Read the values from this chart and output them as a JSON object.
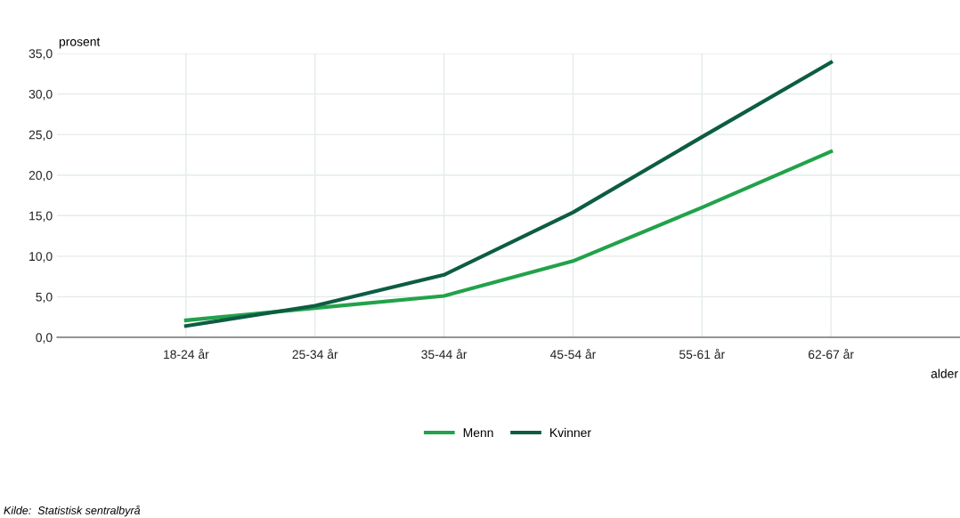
{
  "chart_data": {
    "type": "line",
    "xlabel": "alder",
    "ylabel": "prosent",
    "categories": [
      "18-24 år",
      "25-34 år",
      "35-44 år",
      "45-54 år",
      "55-61 år",
      "62-67 år"
    ],
    "series": [
      {
        "name": "Menn",
        "color": "#22a24a",
        "values": [
          2.1,
          3.6,
          5.1,
          9.4,
          16.0,
          22.9
        ]
      },
      {
        "name": "Kvinner",
        "color": "#0d5c44",
        "values": [
          1.4,
          3.9,
          7.7,
          15.4,
          24.7,
          33.9
        ]
      }
    ],
    "ylim": [
      0,
      35
    ],
    "yticks": [
      {
        "value": 0,
        "label": "0,0"
      },
      {
        "value": 5,
        "label": "5,0"
      },
      {
        "value": 10,
        "label": "10,0"
      },
      {
        "value": 15,
        "label": "15,0"
      },
      {
        "value": 20,
        "label": "20,0"
      },
      {
        "value": 25,
        "label": "25,0"
      },
      {
        "value": 30,
        "label": "30,0"
      },
      {
        "value": 35,
        "label": "35,0"
      }
    ],
    "grid": true,
    "legend": "bottom",
    "marker": "none",
    "line_style": "solid",
    "annotations": [
      "Kilde:  Statistisk sentralbyrå"
    ]
  }
}
